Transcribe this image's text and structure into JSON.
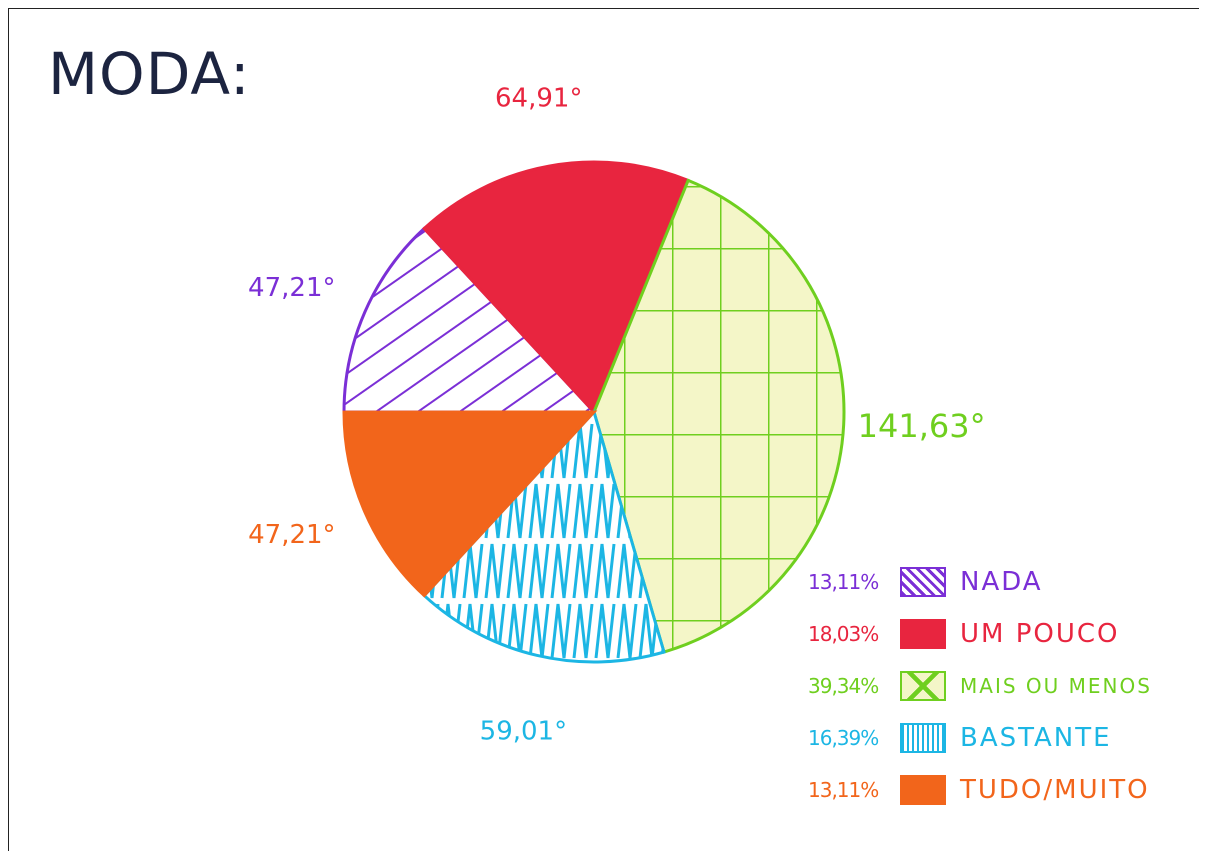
{
  "title": "MODA:",
  "chart_data": {
    "type": "pie",
    "title": "MODA:",
    "slices": [
      {
        "label": "NADA",
        "percent": "13,11%",
        "percent_value": 13.11,
        "angle_label": "47,21°",
        "angle": 47.21,
        "color": "#7b2fd6",
        "pattern": "diagonal"
      },
      {
        "label": "UM POUCO",
        "percent": "18,03%",
        "percent_value": 18.03,
        "angle_label": "64,91°",
        "angle": 64.91,
        "color": "#e8253f",
        "pattern": "solid"
      },
      {
        "label": "MAIS OU MENOS",
        "percent": "39,34%",
        "percent_value": 39.34,
        "angle_label": "141,63°",
        "angle": 141.63,
        "color": "#6fcf1f",
        "pattern": "grid"
      },
      {
        "label": "BASTANTE",
        "percent": "16,39%",
        "percent_value": 16.39,
        "angle_label": "59,01°",
        "angle": 59.01,
        "color": "#1cb6e4",
        "pattern": "zigzag"
      },
      {
        "label": "TUDO/MUITO",
        "percent": "13,11%",
        "percent_value": 13.11,
        "angle_label": "47,21°",
        "angle": 47.21,
        "color": "#f2651b",
        "pattern": "solid"
      }
    ],
    "legend_position": "bottom-right"
  }
}
